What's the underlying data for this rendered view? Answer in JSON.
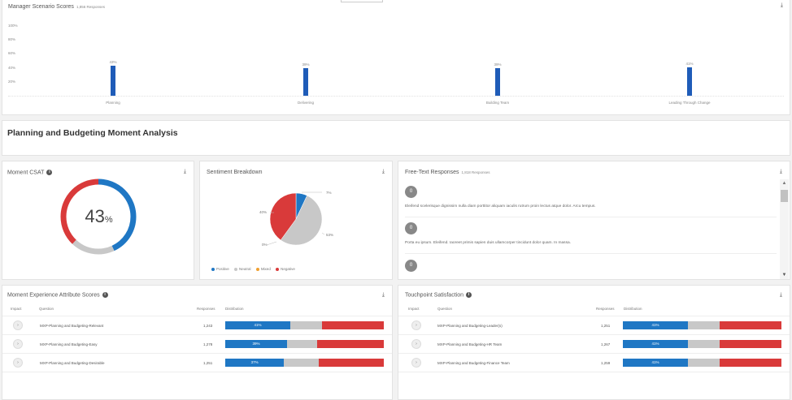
{
  "scenario": {
    "title": "Manager Scenario Scores",
    "responses": "1,856 Responses",
    "ticks": [
      "100%",
      "80%",
      "60%",
      "40%",
      "20%"
    ],
    "bars": [
      {
        "label": "Planning",
        "value": 43,
        "value_label": "43%"
      },
      {
        "label": "Delivering",
        "value": 39,
        "value_label": "39%"
      },
      {
        "label": "Building Team",
        "value": 39,
        "value_label": "39%"
      },
      {
        "label": "Leading Through Change",
        "value": 41,
        "value_label": "41%"
      }
    ]
  },
  "section": {
    "title": "Planning and Budgeting Moment Analysis"
  },
  "csat": {
    "title": "Moment CSAT",
    "value": "43",
    "unit": "%",
    "positive_fraction": 0.43,
    "neutral_fraction": 0.19,
    "negative_fraction": 0.38
  },
  "sentiment": {
    "title": "Sentiment Breakdown",
    "labels": {
      "positive": "7%",
      "neutral": "53%",
      "mixed": "0%",
      "negative": "40%"
    },
    "legend": [
      "Positive",
      "Neutral",
      "Mixed",
      "Negative"
    ]
  },
  "freetext": {
    "title": "Free-Text Responses",
    "responses": "1,818 Responses",
    "items": [
      {
        "score": "0",
        "text": "Eleifend scelerisque dignissim nulla diam porttitor aliquam iaculis rutrum proin lectus atque dolor. Arcu tempus."
      },
      {
        "score": "0",
        "text": "Porta eu ipsum. Eleifend. Iaoreet primis sapien duis ullamcorper tincidunt dolor quam. In massa."
      },
      {
        "score": "0",
        "text": ""
      }
    ]
  },
  "attributes": {
    "title": "Moment Experience Attribute Scores",
    "headers": {
      "impact": "Impact",
      "question": "Question",
      "responses": "Responses",
      "distribution": "Distribution"
    },
    "rows": [
      {
        "question": "MXP-Planning and Budgeting-Relevant",
        "responses": "1,243",
        "pos": 41,
        "neu": 20,
        "neg": 39,
        "pos_label": "41%"
      },
      {
        "question": "MXP-Planning and Budgeting-Easy",
        "responses": "1,278",
        "pos": 39,
        "neu": 19,
        "neg": 42,
        "pos_label": "39%"
      },
      {
        "question": "MXP-Planning and Budgeting-Desirable",
        "responses": "1,251",
        "pos": 37,
        "neu": 22,
        "neg": 41,
        "pos_label": "37%"
      }
    ]
  },
  "touchpoint": {
    "title": "Touchpoint Satisfaction",
    "headers": {
      "impact": "Impact",
      "question": "Question",
      "responses": "Responses",
      "distribution": "Distribution"
    },
    "rows": [
      {
        "question": "MXP-Planning and Budgeting-Leader(s)",
        "responses": "1,251",
        "pos": 41,
        "neu": 20,
        "neg": 39,
        "pos_label": "41%"
      },
      {
        "question": "MXP-Planning and Budgeting-HR Team",
        "responses": "1,267",
        "pos": 41,
        "neu": 20,
        "neg": 39,
        "pos_label": "41%"
      },
      {
        "question": "MXP-Planning and Budgeting-Finance Team",
        "responses": "1,259",
        "pos": 41,
        "neu": 20,
        "neg": 39,
        "pos_label": "41%"
      }
    ]
  },
  "colors": {
    "positive": "#1f77c4",
    "neutral": "#c8c8c8",
    "mixed": "#f0a030",
    "negative": "#d93a3a",
    "bar": "#1f5cb8"
  }
}
